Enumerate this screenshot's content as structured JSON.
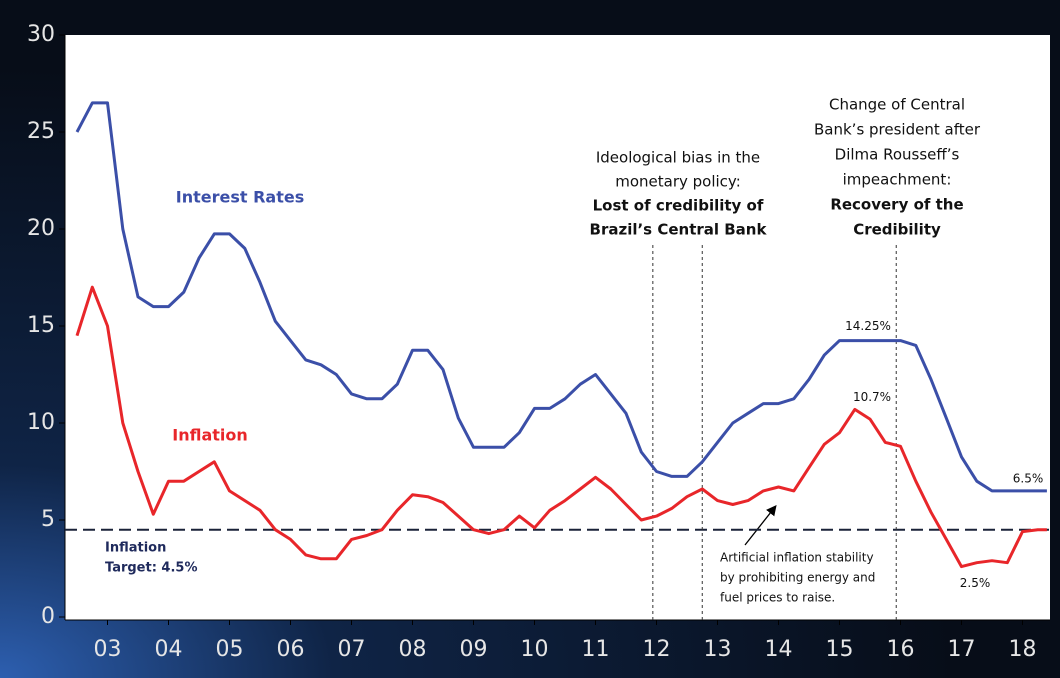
{
  "chart_data": {
    "type": "line",
    "x": [
      2003,
      2003.25,
      2003.5,
      2003.75,
      2004,
      2004.25,
      2004.5,
      2004.75,
      2005,
      2005.25,
      2005.5,
      2005.75,
      2006,
      2006.25,
      2006.5,
      2006.75,
      2007,
      2007.25,
      2007.5,
      2007.75,
      2008,
      2008.25,
      2008.5,
      2008.75,
      2009,
      2009.25,
      2009.5,
      2009.75,
      2010,
      2010.25,
      2010.5,
      2010.75,
      2011,
      2011.25,
      2011.5,
      2011.75,
      2012,
      2012.25,
      2012.5,
      2012.75,
      2013,
      2013.25,
      2013.5,
      2013.75,
      2014,
      2014.25,
      2014.5,
      2014.75,
      2015,
      2015.25,
      2015.5,
      2015.75,
      2016,
      2016.25,
      2016.5,
      2016.75,
      2017,
      2017.25,
      2017.5,
      2017.75,
      2018,
      2018.25,
      2018.5,
      2018.75,
      2018.9
    ],
    "series": [
      {
        "name": "Interest Rates",
        "color": "#3b4fa8",
        "values": [
          25,
          26.5,
          26.5,
          20,
          16.5,
          16,
          16,
          16.75,
          18.5,
          19.75,
          19.75,
          19,
          17.25,
          15.25,
          14.25,
          13.25,
          13,
          12.5,
          11.5,
          11.25,
          11.25,
          12,
          13.75,
          13.75,
          12.75,
          10.25,
          8.75,
          8.75,
          8.75,
          9.5,
          10.75,
          10.75,
          11.25,
          12,
          12.5,
          11.5,
          10.5,
          8.5,
          7.5,
          7.25,
          7.25,
          8,
          9,
          10,
          10.5,
          11,
          11,
          11.25,
          12.25,
          13.5,
          14.25,
          14.25,
          14.25,
          14.25,
          14.25,
          14,
          12.25,
          10.25,
          8.25,
          7,
          6.5,
          6.5,
          6.5,
          6.5,
          6.5
        ]
      },
      {
        "name": "Inflation",
        "color": "#e8262a",
        "values": [
          14.5,
          17,
          15,
          10,
          7.5,
          5.3,
          7,
          7,
          7.5,
          8,
          6.5,
          6,
          5.5,
          4.5,
          4,
          3.2,
          3,
          3,
          4,
          4.2,
          4.5,
          5.5,
          6.3,
          6.2,
          5.9,
          5.2,
          4.5,
          4.3,
          4.5,
          5.2,
          4.6,
          5.5,
          6,
          6.6,
          7.2,
          6.6,
          5.8,
          5,
          5.2,
          5.6,
          6.2,
          6.6,
          6,
          5.8,
          6,
          6.5,
          6.7,
          6.5,
          7.7,
          8.9,
          9.5,
          10.7,
          10.2,
          9,
          8.8,
          7,
          5.4,
          4,
          2.6,
          2.8,
          2.9,
          2.8,
          4.4,
          4.5,
          4.5
        ]
      }
    ],
    "xlim": [
      2003,
      2019
    ],
    "xticks": [
      {
        "value": 2003.5,
        "label": "03"
      },
      {
        "value": 2004.5,
        "label": "04"
      },
      {
        "value": 2005.5,
        "label": "05"
      },
      {
        "value": 2006.5,
        "label": "06"
      },
      {
        "value": 2007.5,
        "label": "07"
      },
      {
        "value": 2008.5,
        "label": "08"
      },
      {
        "value": 2009.5,
        "label": "09"
      },
      {
        "value": 2010.5,
        "label": "10"
      },
      {
        "value": 2011.5,
        "label": "11"
      },
      {
        "value": 2012.5,
        "label": "12"
      },
      {
        "value": 2013.5,
        "label": "13"
      },
      {
        "value": 2014.5,
        "label": "14"
      },
      {
        "value": 2015.5,
        "label": "15"
      },
      {
        "value": 2016.5,
        "label": "16"
      },
      {
        "value": 2017.5,
        "label": "17"
      },
      {
        "value": 2018.5,
        "label": "18"
      }
    ],
    "ylim": [
      0,
      30
    ],
    "yticks": [
      0,
      5,
      10,
      15,
      20,
      25,
      30
    ],
    "target": {
      "value": 4.5,
      "lines": [
        "Inflation",
        "Target: 4.5%"
      ]
    },
    "events": [
      2012.44,
      2013.25,
      2016.43
    ],
    "annotations": [
      {
        "lines": [
          "Ideological bias in the",
          "monetary policy:"
        ],
        "bold": [
          "Lost of credibility of",
          "Brazil’s Central Bank"
        ]
      },
      {
        "lines": [
          "Change of Central",
          "Bank’s president after",
          "Dilma Rousseff’s",
          "impeachment:"
        ],
        "bold": [
          "Recovery of the",
          "Credibility"
        ]
      },
      {
        "lines": [
          "Artificial inflation stability",
          "by prohibiting energy and",
          "fuel prices to raise."
        ],
        "bold": []
      }
    ],
    "point_labels": [
      {
        "value": 14.25,
        "label": "14.25%"
      },
      {
        "value": 10.7,
        "label": "10.7%"
      },
      {
        "value": 6.5,
        "label": "6.5%"
      },
      {
        "value": 2.5,
        "label": "2.5%"
      }
    ]
  }
}
